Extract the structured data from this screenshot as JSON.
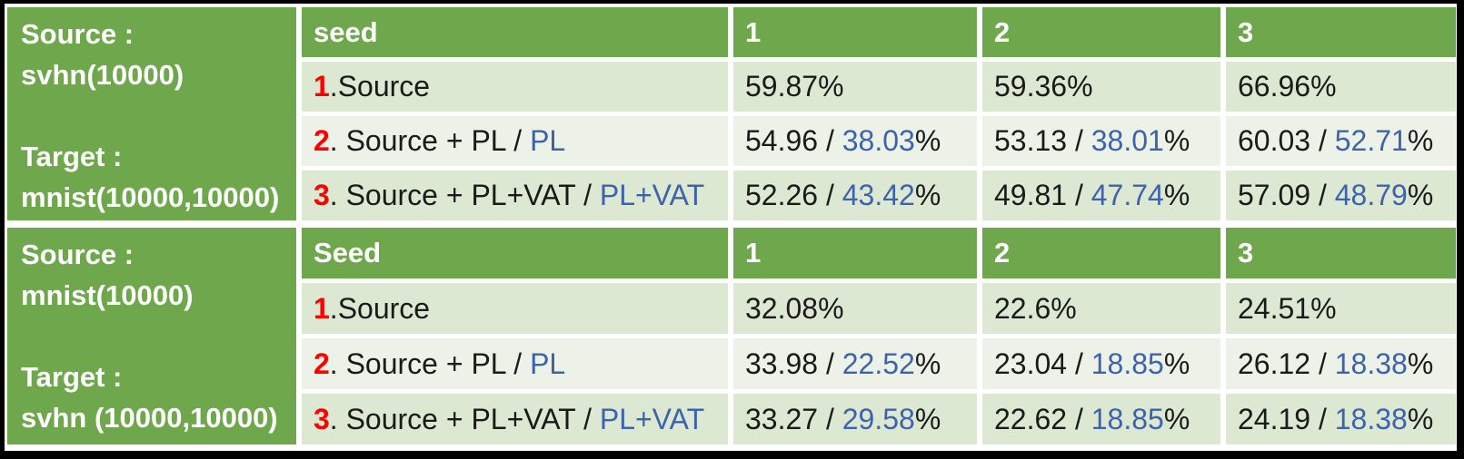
{
  "colors": {
    "header_green": "#6FA84C",
    "band_dark": "#DDE8D2",
    "band_light": "#EDF2E8",
    "accent_red": "#FF0000",
    "accent_blue": "#3D63AC",
    "text_black": "#1A1A1A"
  },
  "tables": [
    {
      "id": "svhn-to-mnist",
      "corner": {
        "lines": [
          "Source :",
          "svhn(10000)",
          "",
          "Target :",
          "mnist(10000,10000)"
        ]
      },
      "seed_header": "seed",
      "seed_cols": [
        "1",
        "2",
        "3"
      ],
      "rows": [
        {
          "label": [
            {
              "t": "1",
              "c": "red"
            },
            {
              "t": ".Source",
              "c": "black"
            }
          ],
          "cells": [
            [
              {
                "t": "59.87%",
                "c": "black"
              }
            ],
            [
              {
                "t": "59.36%",
                "c": "black"
              }
            ],
            [
              {
                "t": "66.96%",
                "c": "black"
              }
            ]
          ]
        },
        {
          "label": [
            {
              "t": "2",
              "c": "red"
            },
            {
              "t": ". Source + PL / ",
              "c": "black"
            },
            {
              "t": "PL",
              "c": "blue"
            }
          ],
          "cells": [
            [
              {
                "t": "54.96 / ",
                "c": "black"
              },
              {
                "t": "38.03",
                "c": "blue"
              },
              {
                "t": "%",
                "c": "black"
              }
            ],
            [
              {
                "t": "53.13 / ",
                "c": "black"
              },
              {
                "t": "38.01",
                "c": "blue"
              },
              {
                "t": "%",
                "c": "black"
              }
            ],
            [
              {
                "t": "60.03 / ",
                "c": "black"
              },
              {
                "t": "52.71",
                "c": "blue"
              },
              {
                "t": "%",
                "c": "black"
              }
            ]
          ]
        },
        {
          "label": [
            {
              "t": "3",
              "c": "red"
            },
            {
              "t": ". Source + PL+VAT / ",
              "c": "black"
            },
            {
              "t": "PL+VAT",
              "c": "blue"
            }
          ],
          "cells": [
            [
              {
                "t": "52.26 / ",
                "c": "black"
              },
              {
                "t": "43.42",
                "c": "blue"
              },
              {
                "t": "%",
                "c": "black"
              }
            ],
            [
              {
                "t": "49.81 / ",
                "c": "black"
              },
              {
                "t": "47.74",
                "c": "blue"
              },
              {
                "t": "%",
                "c": "black"
              }
            ],
            [
              {
                "t": "57.09 / ",
                "c": "black"
              },
              {
                "t": "48.79",
                "c": "blue"
              },
              {
                "t": "%",
                "c": "black"
              }
            ]
          ]
        }
      ]
    },
    {
      "id": "mnist-to-svhn",
      "corner": {
        "lines": [
          "Source :",
          "mnist(10000)",
          "",
          "Target :",
          "svhn (10000,10000)"
        ]
      },
      "seed_header": "Seed",
      "seed_cols": [
        "1",
        "2",
        "3"
      ],
      "rows": [
        {
          "label": [
            {
              "t": "1",
              "c": "red"
            },
            {
              "t": ".Source",
              "c": "black"
            }
          ],
          "cells": [
            [
              {
                "t": "32.08%",
                "c": "black"
              }
            ],
            [
              {
                "t": "22.6%",
                "c": "black"
              }
            ],
            [
              {
                "t": "24.51%",
                "c": "black"
              }
            ]
          ]
        },
        {
          "label": [
            {
              "t": "2",
              "c": "red"
            },
            {
              "t": ". Source + PL / ",
              "c": "black"
            },
            {
              "t": "PL",
              "c": "blue"
            }
          ],
          "cells": [
            [
              {
                "t": "33.98 / ",
                "c": "black"
              },
              {
                "t": "22.52",
                "c": "blue"
              },
              {
                "t": "%",
                "c": "black"
              }
            ],
            [
              {
                "t": "23.04 / ",
                "c": "black"
              },
              {
                "t": "18.85",
                "c": "blue"
              },
              {
                "t": "%",
                "c": "black"
              }
            ],
            [
              {
                "t": "26.12 / ",
                "c": "black"
              },
              {
                "t": "18.38",
                "c": "blue"
              },
              {
                "t": "%",
                "c": "black"
              }
            ]
          ]
        },
        {
          "label": [
            {
              "t": "3",
              "c": "red"
            },
            {
              "t": ". Source + PL+VAT / ",
              "c": "black"
            },
            {
              "t": "PL+VAT",
              "c": "blue"
            }
          ],
          "cells": [
            [
              {
                "t": "33.27 / ",
                "c": "black"
              },
              {
                "t": "29.58",
                "c": "blue"
              },
              {
                "t": "%",
                "c": "black"
              }
            ],
            [
              {
                "t": "22.62 / ",
                "c": "black"
              },
              {
                "t": "18.85",
                "c": "blue"
              },
              {
                "t": "%",
                "c": "black"
              }
            ],
            [
              {
                "t": "24.19 / ",
                "c": "black"
              },
              {
                "t": "18.38",
                "c": "blue"
              },
              {
                "t": "%",
                "c": "black"
              }
            ]
          ]
        }
      ]
    }
  ],
  "chart_data": [
    {
      "type": "table",
      "title": "Source : svhn(10000)  Target : mnist(10000,10000)",
      "columns": [
        "seed",
        "1",
        "2",
        "3"
      ],
      "rows": [
        [
          "1.Source",
          "59.87%",
          "59.36%",
          "66.96%"
        ],
        [
          "2. Source + PL / PL",
          "54.96 / 38.03%",
          "53.13 / 38.01%",
          "60.03 / 52.71%"
        ],
        [
          "3. Source + PL+VAT / PL+VAT",
          "52.26 / 43.42%",
          "49.81 / 47.74%",
          "57.09 / 48.79%"
        ]
      ]
    },
    {
      "type": "table",
      "title": "Source : mnist(10000)  Target : svhn (10000,10000)",
      "columns": [
        "Seed",
        "1",
        "2",
        "3"
      ],
      "rows": [
        [
          "1.Source",
          "32.08%",
          "22.6%",
          "24.51%"
        ],
        [
          "2. Source + PL / PL",
          "33.98 / 22.52%",
          "23.04 / 18.85%",
          "26.12 / 18.38%"
        ],
        [
          "3. Source + PL+VAT / PL+VAT",
          "33.27 / 29.58%",
          "22.62 / 18.85%",
          "24.19 / 18.38%"
        ]
      ]
    }
  ]
}
